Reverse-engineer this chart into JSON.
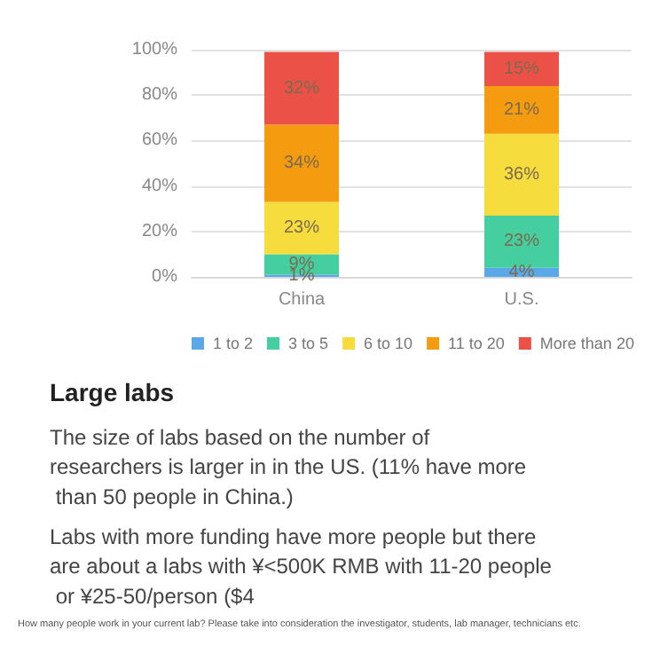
{
  "chart_data": {
    "type": "bar",
    "stacked": true,
    "categories": [
      "China",
      "U.S."
    ],
    "series": [
      {
        "name": "1 to 2",
        "color": "#5aa8e8",
        "values": [
          1,
          4
        ],
        "value_labels": [
          "1%",
          "4%"
        ]
      },
      {
        "name": "3 to 5",
        "color": "#45cfa0",
        "values": [
          9,
          23
        ],
        "value_labels": [
          "9%",
          "23%"
        ]
      },
      {
        "name": "6 to 10",
        "color": "#f7dc3e",
        "values": [
          23,
          36
        ],
        "value_labels": [
          "23%",
          "36%"
        ]
      },
      {
        "name": "11 to 20",
        "color": "#f59b0f",
        "values": [
          34,
          21
        ],
        "value_labels": [
          "34%",
          "21%"
        ]
      },
      {
        "name": "More than 20",
        "color": "#ec5148",
        "values": [
          32,
          15
        ],
        "value_labels": [
          "32%",
          "15%"
        ]
      }
    ],
    "ylim": [
      0,
      100
    ],
    "yticks": [
      {
        "value": 0,
        "label": "0%"
      },
      {
        "value": 20,
        "label": "20%"
      },
      {
        "value": 40,
        "label": "40%"
      },
      {
        "value": 60,
        "label": "60%"
      },
      {
        "value": 80,
        "label": "80%"
      },
      {
        "value": 100,
        "label": "100%"
      }
    ],
    "grid": "y",
    "legend": "bottom",
    "annotations": [
      "Large labs",
      "The size of labs based on the number of researchers is larger in in the US. (11% have more than 50 people in China.)",
      "Labs with more funding have more people but there are about a labs with ¥<500K RMB with 11-20 people or ¥25-50/person ($4",
      "How many people work in your current lab? Please take into consideration the investigator, students, lab manager, technicians etc."
    ]
  }
}
